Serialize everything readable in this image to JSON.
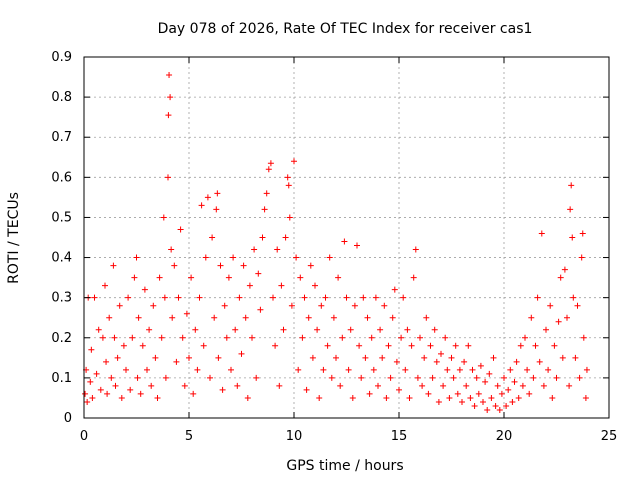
{
  "chart_data": {
    "type": "scatter",
    "title": "Day 078 of 2026, Rate Of TEC Index for receiver cas1",
    "xlabel": "GPS time / hours",
    "ylabel": "ROTI / TECUs",
    "xlim": [
      0,
      25
    ],
    "ylim": [
      0,
      0.9
    ],
    "x_ticks": [
      "0",
      "5",
      "10",
      "15",
      "20",
      "25"
    ],
    "y_ticks": [
      "0",
      "0.1",
      "0.2",
      "0.3",
      "0.4",
      "0.5",
      "0.6",
      "0.7",
      "0.8",
      "0.9"
    ],
    "x_tick_values": [
      0,
      5,
      10,
      15,
      20,
      25
    ],
    "y_tick_values": [
      0,
      0.1,
      0.2,
      0.3,
      0.4,
      0.5,
      0.6,
      0.7,
      0.8,
      0.9
    ],
    "grid": true,
    "marker": "+",
    "series": [
      {
        "name": "ROTI",
        "color": "#ff0000",
        "points": [
          [
            0.05,
            0.06
          ],
          [
            0.1,
            0.12
          ],
          [
            0.15,
            0.04
          ],
          [
            0.2,
            0.3
          ],
          [
            0.3,
            0.09
          ],
          [
            0.35,
            0.17
          ],
          [
            0.4,
            0.05
          ],
          [
            0.5,
            0.3
          ],
          [
            0.6,
            0.11
          ],
          [
            0.7,
            0.22
          ],
          [
            0.8,
            0.07
          ],
          [
            0.9,
            0.2
          ],
          [
            1.0,
            0.33
          ],
          [
            1.05,
            0.14
          ],
          [
            1.1,
            0.06
          ],
          [
            1.2,
            0.25
          ],
          [
            1.3,
            0.1
          ],
          [
            1.4,
            0.38
          ],
          [
            1.45,
            0.2
          ],
          [
            1.5,
            0.08
          ],
          [
            1.6,
            0.15
          ],
          [
            1.7,
            0.28
          ],
          [
            1.8,
            0.05
          ],
          [
            1.9,
            0.18
          ],
          [
            2.0,
            0.12
          ],
          [
            2.1,
            0.3
          ],
          [
            2.2,
            0.07
          ],
          [
            2.3,
            0.2
          ],
          [
            2.4,
            0.35
          ],
          [
            2.5,
            0.4
          ],
          [
            2.55,
            0.1
          ],
          [
            2.6,
            0.25
          ],
          [
            2.7,
            0.06
          ],
          [
            2.8,
            0.18
          ],
          [
            2.9,
            0.32
          ],
          [
            3.0,
            0.12
          ],
          [
            3.1,
            0.22
          ],
          [
            3.2,
            0.08
          ],
          [
            3.3,
            0.28
          ],
          [
            3.4,
            0.15
          ],
          [
            3.5,
            0.05
          ],
          [
            3.6,
            0.35
          ],
          [
            3.7,
            0.2
          ],
          [
            3.8,
            0.5
          ],
          [
            3.85,
            0.3
          ],
          [
            3.9,
            0.1
          ],
          [
            4.0,
            0.6
          ],
          [
            4.05,
            0.855
          ],
          [
            4.1,
            0.8
          ],
          [
            4.02,
            0.755
          ],
          [
            4.15,
            0.42
          ],
          [
            4.2,
            0.25
          ],
          [
            4.3,
            0.38
          ],
          [
            4.4,
            0.14
          ],
          [
            4.5,
            0.3
          ],
          [
            4.6,
            0.47
          ],
          [
            4.7,
            0.2
          ],
          [
            4.8,
            0.08
          ],
          [
            4.9,
            0.26
          ],
          [
            5.0,
            0.15
          ],
          [
            5.1,
            0.35
          ],
          [
            5.2,
            0.06
          ],
          [
            5.3,
            0.22
          ],
          [
            5.4,
            0.12
          ],
          [
            5.5,
            0.3
          ],
          [
            5.6,
            0.53
          ],
          [
            5.7,
            0.18
          ],
          [
            5.8,
            0.4
          ],
          [
            5.9,
            0.55
          ],
          [
            6.0,
            0.1
          ],
          [
            6.1,
            0.45
          ],
          [
            6.2,
            0.25
          ],
          [
            6.3,
            0.52
          ],
          [
            6.35,
            0.56
          ],
          [
            6.4,
            0.15
          ],
          [
            6.5,
            0.38
          ],
          [
            6.6,
            0.07
          ],
          [
            6.7,
            0.28
          ],
          [
            6.8,
            0.2
          ],
          [
            6.9,
            0.35
          ],
          [
            7.0,
            0.12
          ],
          [
            7.1,
            0.4
          ],
          [
            7.2,
            0.22
          ],
          [
            7.3,
            0.08
          ],
          [
            7.4,
            0.3
          ],
          [
            7.5,
            0.16
          ],
          [
            7.6,
            0.38
          ],
          [
            7.7,
            0.25
          ],
          [
            7.8,
            0.05
          ],
          [
            7.9,
            0.33
          ],
          [
            8.0,
            0.2
          ],
          [
            8.1,
            0.42
          ],
          [
            8.2,
            0.1
          ],
          [
            8.3,
            0.36
          ],
          [
            8.4,
            0.27
          ],
          [
            8.5,
            0.45
          ],
          [
            8.6,
            0.52
          ],
          [
            8.7,
            0.56
          ],
          [
            8.8,
            0.62
          ],
          [
            8.9,
            0.635
          ],
          [
            9.0,
            0.3
          ],
          [
            9.1,
            0.18
          ],
          [
            9.2,
            0.42
          ],
          [
            9.3,
            0.08
          ],
          [
            9.4,
            0.33
          ],
          [
            9.5,
            0.22
          ],
          [
            9.6,
            0.45
          ],
          [
            9.7,
            0.6
          ],
          [
            9.75,
            0.58
          ],
          [
            9.8,
            0.5
          ],
          [
            9.9,
            0.28
          ],
          [
            10.0,
            0.64
          ],
          [
            10.1,
            0.4
          ],
          [
            10.2,
            0.12
          ],
          [
            10.3,
            0.35
          ],
          [
            10.4,
            0.2
          ],
          [
            10.5,
            0.3
          ],
          [
            10.6,
            0.07
          ],
          [
            10.7,
            0.25
          ],
          [
            10.8,
            0.38
          ],
          [
            10.9,
            0.15
          ],
          [
            11.0,
            0.33
          ],
          [
            11.1,
            0.22
          ],
          [
            11.2,
            0.05
          ],
          [
            11.3,
            0.28
          ],
          [
            11.4,
            0.12
          ],
          [
            11.5,
            0.3
          ],
          [
            11.6,
            0.18
          ],
          [
            11.7,
            0.4
          ],
          [
            11.8,
            0.1
          ],
          [
            11.9,
            0.25
          ],
          [
            12.0,
            0.15
          ],
          [
            12.1,
            0.35
          ],
          [
            12.2,
            0.08
          ],
          [
            12.3,
            0.2
          ],
          [
            12.4,
            0.44
          ],
          [
            12.5,
            0.3
          ],
          [
            12.6,
            0.12
          ],
          [
            12.7,
            0.22
          ],
          [
            12.8,
            0.05
          ],
          [
            12.9,
            0.28
          ],
          [
            13.0,
            0.43
          ],
          [
            13.1,
            0.18
          ],
          [
            13.2,
            0.1
          ],
          [
            13.3,
            0.3
          ],
          [
            13.4,
            0.15
          ],
          [
            13.5,
            0.25
          ],
          [
            13.6,
            0.06
          ],
          [
            13.7,
            0.2
          ],
          [
            13.8,
            0.12
          ],
          [
            13.9,
            0.3
          ],
          [
            14.0,
            0.08
          ],
          [
            14.1,
            0.22
          ],
          [
            14.2,
            0.15
          ],
          [
            14.3,
            0.28
          ],
          [
            14.4,
            0.05
          ],
          [
            14.5,
            0.18
          ],
          [
            14.6,
            0.1
          ],
          [
            14.7,
            0.25
          ],
          [
            14.8,
            0.32
          ],
          [
            14.9,
            0.14
          ],
          [
            15.0,
            0.07
          ],
          [
            15.1,
            0.2
          ],
          [
            15.2,
            0.3
          ],
          [
            15.3,
            0.12
          ],
          [
            15.4,
            0.22
          ],
          [
            15.5,
            0.05
          ],
          [
            15.6,
            0.18
          ],
          [
            15.7,
            0.35
          ],
          [
            15.8,
            0.42
          ],
          [
            15.9,
            0.1
          ],
          [
            16.0,
            0.2
          ],
          [
            16.1,
            0.08
          ],
          [
            16.2,
            0.15
          ],
          [
            16.3,
            0.25
          ],
          [
            16.4,
            0.06
          ],
          [
            16.5,
            0.18
          ],
          [
            16.6,
            0.1
          ],
          [
            16.7,
            0.22
          ],
          [
            16.8,
            0.14
          ],
          [
            16.9,
            0.04
          ],
          [
            17.0,
            0.16
          ],
          [
            17.1,
            0.08
          ],
          [
            17.2,
            0.2
          ],
          [
            17.3,
            0.12
          ],
          [
            17.4,
            0.05
          ],
          [
            17.5,
            0.15
          ],
          [
            17.6,
            0.1
          ],
          [
            17.7,
            0.18
          ],
          [
            17.8,
            0.06
          ],
          [
            17.9,
            0.12
          ],
          [
            18.0,
            0.04
          ],
          [
            18.1,
            0.14
          ],
          [
            18.2,
            0.08
          ],
          [
            18.3,
            0.18
          ],
          [
            18.4,
            0.05
          ],
          [
            18.5,
            0.12
          ],
          [
            18.6,
            0.03
          ],
          [
            18.7,
            0.1
          ],
          [
            18.8,
            0.06
          ],
          [
            18.9,
            0.13
          ],
          [
            19.0,
            0.04
          ],
          [
            19.1,
            0.09
          ],
          [
            19.2,
            0.02
          ],
          [
            19.3,
            0.11
          ],
          [
            19.4,
            0.05
          ],
          [
            19.5,
            0.15
          ],
          [
            19.6,
            0.03
          ],
          [
            19.7,
            0.08
          ],
          [
            19.8,
            0.02
          ],
          [
            19.9,
            0.06
          ],
          [
            20.0,
            0.1
          ],
          [
            20.1,
            0.03
          ],
          [
            20.2,
            0.07
          ],
          [
            20.3,
            0.12
          ],
          [
            20.4,
            0.04
          ],
          [
            20.5,
            0.09
          ],
          [
            20.6,
            0.14
          ],
          [
            20.7,
            0.05
          ],
          [
            20.8,
            0.18
          ],
          [
            20.9,
            0.08
          ],
          [
            21.0,
            0.2
          ],
          [
            21.1,
            0.12
          ],
          [
            21.2,
            0.06
          ],
          [
            21.3,
            0.25
          ],
          [
            21.4,
            0.1
          ],
          [
            21.5,
            0.18
          ],
          [
            21.6,
            0.3
          ],
          [
            21.7,
            0.14
          ],
          [
            21.8,
            0.46
          ],
          [
            21.9,
            0.08
          ],
          [
            22.0,
            0.22
          ],
          [
            22.1,
            0.12
          ],
          [
            22.2,
            0.28
          ],
          [
            22.3,
            0.05
          ],
          [
            22.4,
            0.18
          ],
          [
            22.5,
            0.1
          ],
          [
            22.6,
            0.24
          ],
          [
            22.7,
            0.35
          ],
          [
            22.8,
            0.15
          ],
          [
            22.9,
            0.37
          ],
          [
            23.0,
            0.25
          ],
          [
            23.1,
            0.08
          ],
          [
            23.15,
            0.52
          ],
          [
            23.2,
            0.58
          ],
          [
            23.25,
            0.45
          ],
          [
            23.3,
            0.3
          ],
          [
            23.4,
            0.15
          ],
          [
            23.5,
            0.28
          ],
          [
            23.6,
            0.1
          ],
          [
            23.7,
            0.4
          ],
          [
            23.75,
            0.46
          ],
          [
            23.8,
            0.2
          ],
          [
            23.9,
            0.05
          ],
          [
            23.95,
            0.12
          ]
        ]
      }
    ]
  }
}
